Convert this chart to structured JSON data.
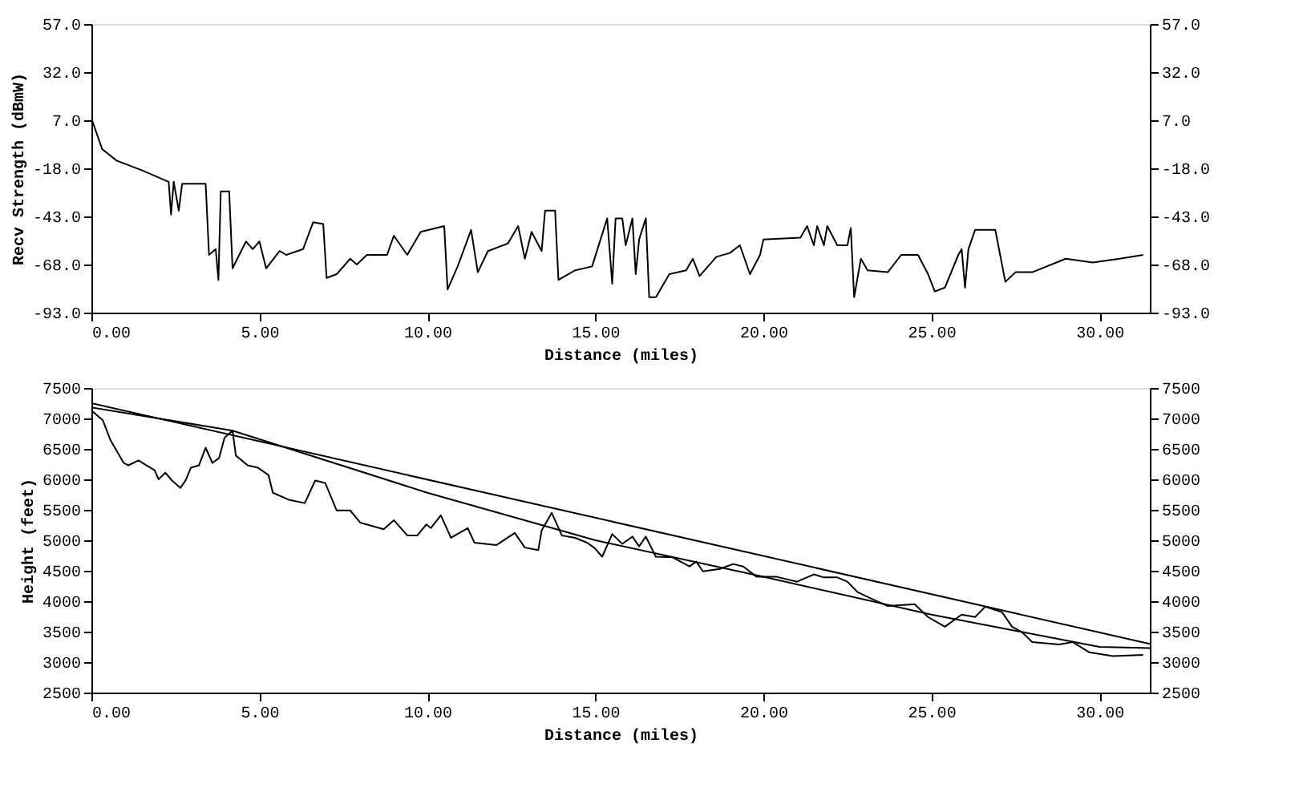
{
  "chart_data": [
    {
      "type": "line",
      "xlabel": "Distance (miles)",
      "ylabel": "Recv Strength (dBmW)",
      "grid": false,
      "marker": "none",
      "line_style": "solid",
      "xlim": [
        0,
        31.5
      ],
      "xticks": [
        {
          "value": 0,
          "label": "0.00"
        },
        {
          "value": 5,
          "label": "5.00"
        },
        {
          "value": 10,
          "label": "10.00"
        },
        {
          "value": 15,
          "label": "15.00"
        },
        {
          "value": 20,
          "label": "20.00"
        },
        {
          "value": 25,
          "label": "25.00"
        },
        {
          "value": 30,
          "label": "30.00"
        }
      ],
      "ylim": [
        -93,
        57
      ],
      "yticks": [
        {
          "value": -93,
          "label": "-93.0"
        },
        {
          "value": -68,
          "label": "-68.0"
        },
        {
          "value": -43,
          "label": "-43.0"
        },
        {
          "value": -18,
          "label": "-18.0"
        },
        {
          "value": 7,
          "label": "7.0"
        },
        {
          "value": 32,
          "label": "32.0"
        },
        {
          "value": 57,
          "label": "57.0"
        }
      ],
      "y2lim": [
        -93,
        57
      ],
      "y2ticks": [
        {
          "value": -93,
          "label": "-93.0"
        },
        {
          "value": -68,
          "label": "-68.0"
        },
        {
          "value": -43,
          "label": "-43.0"
        },
        {
          "value": -18,
          "label": "-18.0"
        },
        {
          "value": 7,
          "label": "7.0"
        },
        {
          "value": 32,
          "label": "32.0"
        },
        {
          "value": 57,
          "label": "57.0"
        }
      ],
      "series": [
        {
          "color": "#000000",
          "x": [
            0.02,
            0.32,
            0.75,
            1.5,
            2.3,
            2.37,
            2.45,
            2.6,
            2.7,
            3.4,
            3.5,
            3.7,
            3.78,
            3.85,
            4.1,
            4.2,
            4.6,
            4.8,
            5.0,
            5.2,
            5.6,
            5.8,
            6.3,
            6.6,
            6.9,
            7.0,
            7.3,
            7.7,
            7.9,
            8.2,
            8.8,
            9.0,
            9.4,
            9.8,
            10.5,
            10.6,
            10.9,
            11.3,
            11.5,
            11.8,
            12.4,
            12.7,
            12.9,
            13.1,
            13.4,
            13.5,
            13.8,
            13.9,
            14.4,
            14.9,
            15.35,
            15.5,
            15.6,
            15.8,
            15.9,
            16.1,
            16.2,
            16.3,
            16.5,
            16.6,
            16.8,
            17.2,
            17.7,
            17.9,
            18.1,
            18.6,
            19.0,
            19.3,
            19.6,
            19.9,
            20.0,
            21.1,
            21.3,
            21.5,
            21.6,
            21.8,
            21.9,
            22.2,
            22.5,
            22.6,
            22.7,
            22.9,
            23.1,
            23.7,
            24.1,
            24.6,
            24.9,
            25.1,
            25.4,
            25.8,
            25.9,
            26.0,
            26.1,
            26.3,
            26.9,
            27.2,
            27.5,
            28.0,
            29.0,
            29.8,
            30.6,
            31.3
          ],
          "values": [
            7,
            -8,
            -14,
            -19,
            -25,
            -42,
            -25,
            -40,
            -26,
            -26,
            -63,
            -60,
            -76,
            -30,
            -30,
            -70,
            -56,
            -60,
            -56,
            -70,
            -61,
            -63,
            -60,
            -46,
            -47,
            -75,
            -73,
            -65,
            -68,
            -63,
            -63,
            -53,
            -63,
            -51,
            -48,
            -81,
            -69,
            -50,
            -72,
            -61,
            -57,
            -48,
            -65,
            -51,
            -61,
            -40,
            -40,
            -76,
            -71,
            -69,
            -44,
            -78,
            -44,
            -44,
            -58,
            -44,
            -73,
            -55,
            -44,
            -85,
            -85,
            -73,
            -71,
            -65,
            -74,
            -64,
            -62,
            -58,
            -73,
            -63,
            -55,
            -54,
            -48,
            -58,
            -48,
            -58,
            -48,
            -58,
            -58,
            -49,
            -85,
            -65,
            -71,
            -72,
            -63,
            -63,
            -73,
            -82,
            -80,
            -63,
            -60,
            -80,
            -60,
            -50,
            -50,
            -77,
            -72,
            -72,
            -65,
            -67,
            -65,
            -63
          ]
        }
      ]
    },
    {
      "type": "line",
      "xlabel": "Distance (miles)",
      "ylabel": "Height (feet)",
      "grid": false,
      "marker": "none",
      "line_style": "solid",
      "xlim": [
        0,
        31.5
      ],
      "xticks": [
        {
          "value": 0,
          "label": "0.00"
        },
        {
          "value": 5,
          "label": "5.00"
        },
        {
          "value": 10,
          "label": "10.00"
        },
        {
          "value": 15,
          "label": "15.00"
        },
        {
          "value": 20,
          "label": "20.00"
        },
        {
          "value": 25,
          "label": "25.00"
        },
        {
          "value": 30,
          "label": "30.00"
        }
      ],
      "ylim": [
        2500,
        7500
      ],
      "yticks": [
        2500,
        3000,
        3500,
        4000,
        4500,
        5000,
        5500,
        6000,
        6500,
        7000,
        7500
      ],
      "y2lim": [
        2500,
        7500
      ],
      "y2ticks": [
        2500,
        3000,
        3500,
        4000,
        4500,
        5000,
        5500,
        6000,
        6500,
        7000,
        7500
      ],
      "series": [
        {
          "color": "#000000",
          "x": [
            0,
            0.34,
            0.57,
            0.96,
            1.1,
            1.4,
            1.88,
            2.0,
            2.2,
            2.4,
            2.65,
            2.8,
            2.96,
            3.2,
            3.4,
            3.6,
            3.8,
            3.96,
            4.2,
            4.3,
            4.65,
            4.96,
            5.27,
            5.4,
            5.9,
            6.35,
            6.66,
            6.96,
            7.3,
            7.7,
            8.0,
            8.7,
            9.0,
            9.4,
            9.7,
            9.97,
            10.1,
            10.4,
            10.7,
            11.2,
            11.4,
            12.05,
            12.6,
            12.9,
            13.3,
            13.4,
            13.7,
            14.0,
            14.4,
            14.75,
            14.98,
            15.2,
            15.5,
            15.8,
            16.1,
            16.3,
            16.5,
            16.8,
            17.3,
            17.8,
            18.0,
            18.2,
            18.7,
            19.1,
            19.4,
            19.8,
            20.4,
            21.0,
            21.5,
            21.8,
            22.2,
            22.5,
            22.8,
            23.1,
            23.7,
            24.5,
            24.9,
            25.4,
            25.9,
            26.3,
            26.6,
            27.1,
            27.4,
            27.7,
            28.0,
            28.8,
            29.2,
            29.7,
            30.4,
            31.3
          ],
          "values": [
            7130,
            6970,
            6640,
            6270,
            6230,
            6310,
            6150,
            6000,
            6110,
            5980,
            5860,
            5980,
            6190,
            6230,
            6520,
            6270,
            6350,
            6680,
            6800,
            6390,
            6230,
            6190,
            6070,
            5780,
            5660,
            5610,
            5980,
            5940,
            5490,
            5490,
            5290,
            5180,
            5330,
            5080,
            5080,
            5260,
            5200,
            5410,
            5040,
            5200,
            4960,
            4920,
            5120,
            4880,
            4840,
            5160,
            5450,
            5080,
            5040,
            4960,
            4870,
            4730,
            5100,
            4940,
            5060,
            4900,
            5060,
            4730,
            4720,
            4570,
            4650,
            4490,
            4530,
            4610,
            4570,
            4400,
            4400,
            4320,
            4440,
            4390,
            4390,
            4320,
            4150,
            4070,
            3920,
            3950,
            3740,
            3580,
            3780,
            3740,
            3910,
            3820,
            3580,
            3490,
            3330,
            3290,
            3330,
            3160,
            3100,
            3120
          ]
        },
        {
          "color": "#000000",
          "x": [
            0,
            31.5
          ],
          "values": [
            7250,
            3300
          ]
        },
        {
          "color": "#000000",
          "x": [
            0,
            4.2,
            10,
            15,
            20,
            25,
            30,
            31.5
          ],
          "values": [
            7180,
            6800,
            5780,
            5000,
            4400,
            3780,
            3250,
            3230
          ]
        }
      ]
    }
  ]
}
